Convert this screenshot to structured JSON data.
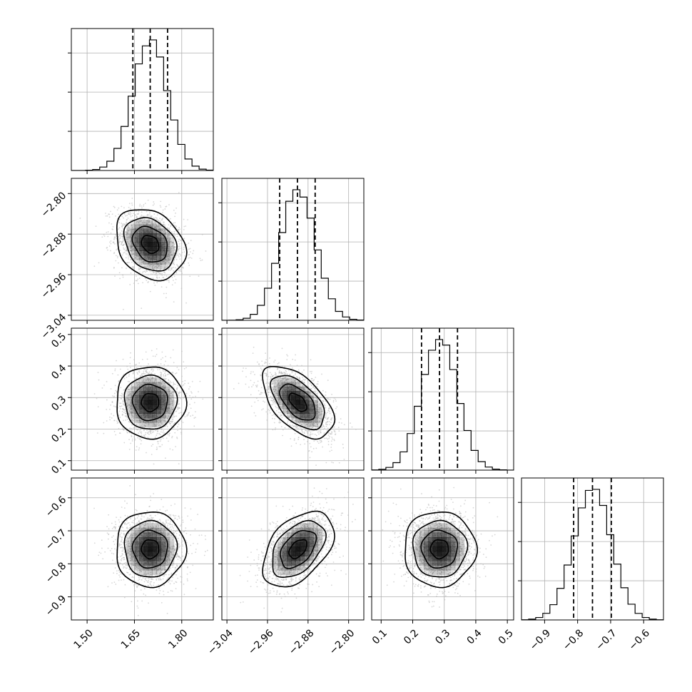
{
  "chart_data": {
    "type": "corner",
    "parameters": [
      {
        "mean": 1.7,
        "sigma": 0.055,
        "range": [
          1.45,
          1.9
        ],
        "ticks": [
          1.5,
          1.65,
          1.8
        ],
        "tick_labels": [
          "1.50",
          "1.65",
          "1.80"
        ],
        "quantiles": [
          1.645,
          1.7,
          1.755
        ]
      },
      {
        "mean": -2.9,
        "sigma": 0.035,
        "range": [
          -3.05,
          -2.77
        ],
        "ticks": [
          -3.04,
          -2.96,
          -2.88,
          -2.8
        ],
        "tick_labels": [
          "−3.04",
          "−2.96",
          "−2.88",
          "−2.80"
        ],
        "quantiles": [
          -2.936,
          -2.901,
          -2.866
        ]
      },
      {
        "mean": 0.285,
        "sigma": 0.057,
        "range": [
          0.07,
          0.52
        ],
        "ticks": [
          0.1,
          0.2,
          0.3,
          0.4,
          0.5
        ],
        "tick_labels": [
          "0.1",
          "0.2",
          "0.3",
          "0.4",
          "0.5"
        ],
        "quantiles": [
          0.228,
          0.285,
          0.342
        ]
      },
      {
        "mean": -0.755,
        "sigma": 0.057,
        "range": [
          -0.97,
          -0.54
        ],
        "ticks": [
          -0.9,
          -0.8,
          -0.7,
          -0.6
        ],
        "tick_labels": [
          "−0.9",
          "−0.8",
          "−0.7",
          "−0.6"
        ],
        "quantiles": [
          -0.812,
          -0.755,
          -0.698
        ]
      }
    ],
    "correlations": {
      "1_0": -0.25,
      "2_0": 0.0,
      "2_1": -0.55,
      "3_0": 0.0,
      "3_1": 0.45,
      "3_2": 0.0
    },
    "histogram_bins": 20,
    "contour_levels_sigma": [
      0.5,
      1.0,
      1.5,
      2.0
    ],
    "grid": true,
    "colors": {
      "line": "#000000",
      "scatter": "#bdbdbd",
      "density": "#000000",
      "grid": "#b0b0b0"
    }
  }
}
